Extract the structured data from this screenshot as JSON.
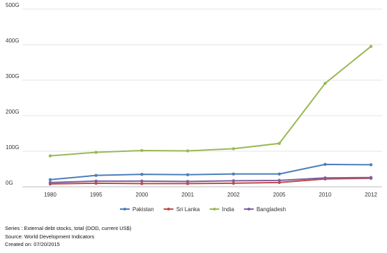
{
  "chart_data": {
    "type": "line",
    "categories": [
      "1980",
      "1995",
      "2000",
      "2001",
      "2002",
      "2005",
      "2010",
      "2012"
    ],
    "y_ticks": [
      "0G",
      "100G",
      "200G",
      "300G",
      "400G",
      "500G"
    ],
    "ylim": [
      0,
      500
    ],
    "grid": "horizontal",
    "legend_position": "bottom",
    "series": [
      {
        "name": "Pakistan",
        "color": "#4a7ebb",
        "values": [
          20,
          32,
          35,
          34,
          36,
          36,
          63,
          62
        ]
      },
      {
        "name": "Sri Lanka",
        "color": "#be4b48",
        "values": [
          8,
          10,
          9,
          9,
          10,
          12,
          22,
          24
        ]
      },
      {
        "name": "India",
        "color": "#98b954",
        "values": [
          87,
          97,
          102,
          101,
          107,
          122,
          291,
          395
        ]
      },
      {
        "name": "Bangladesh",
        "color": "#7d60a0",
        "values": [
          12,
          16,
          16,
          15,
          17,
          18,
          25,
          26
        ]
      }
    ]
  },
  "footer": {
    "series_line": "Series : External debt stocks, total (DOD, current US$)",
    "source_line": "Source: World Development Indicators",
    "created_line": "Created on: 07/20/2015"
  }
}
